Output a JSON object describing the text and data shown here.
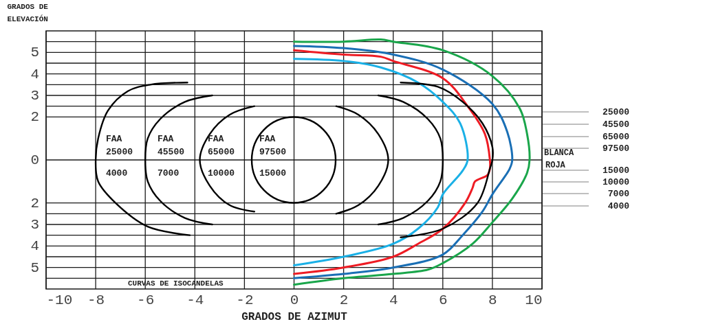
{
  "chart_data": {
    "type": "line",
    "xlabel": "GRADOS DE AZIMUT",
    "ylabel": "GRADOS DE ELEVACIÓN",
    "xlim": [
      -10,
      10
    ],
    "xticks": [
      -10,
      -8,
      -6,
      -4,
      -2,
      0,
      2,
      4,
      6,
      8,
      10
    ],
    "ylim": [
      -6,
      6
    ],
    "yticks": [
      {
        "value": -5.5,
        "label": null
      },
      {
        "value": -5,
        "label": "5"
      },
      {
        "value": -4.5,
        "label": null
      },
      {
        "value": -4,
        "label": "4"
      },
      {
        "value": -3.5,
        "label": null
      },
      {
        "value": -3,
        "label": "3"
      },
      {
        "value": -2.5,
        "label": null
      },
      {
        "value": -2,
        "label": "2"
      },
      0,
      2,
      {
        "value": 2.5,
        "label": null
      },
      3,
      {
        "value": 3.5,
        "label": null
      },
      4,
      {
        "value": 4.5,
        "label": null
      },
      5,
      {
        "value": 5.5,
        "label": null
      }
    ],
    "grid": true,
    "series": [
      {
        "color": "#1aa64b",
        "x": [
          0,
          2,
          3.5,
          4,
          6,
          8,
          9.1,
          9.4,
          9.5,
          9.4,
          8.8,
          8,
          7.2,
          6,
          5.4,
          4,
          2,
          0
        ],
        "values": [
          5.5,
          5.5,
          5.6,
          5.5,
          5.1,
          3.9,
          2.4,
          1.2,
          0,
          -0.6,
          -1.8,
          -2.9,
          -3.9,
          -4.8,
          -5.1,
          -5.3,
          -5.5,
          -5.8
        ]
      },
      {
        "color": "#1a6fb5",
        "x": [
          0,
          2,
          4,
          6,
          8,
          8.6,
          8.8,
          8.7,
          8,
          7.6,
          6.8,
          6,
          4,
          2,
          0
        ],
        "values": [
          5.3,
          5.2,
          4.9,
          4.2,
          2.6,
          1.3,
          0,
          -0.4,
          -1.6,
          -2.4,
          -3.5,
          -4.4,
          -5,
          -5.3,
          -5.5
        ]
      },
      {
        "color": "#ee1c24",
        "x": [
          0,
          2,
          3.5,
          4,
          6,
          7,
          7.7,
          7.9,
          7.9,
          7.8,
          7.3,
          7.2,
          6.9,
          6,
          5,
          4,
          2,
          0
        ],
        "values": [
          5.1,
          4.9,
          4.8,
          4.6,
          3.8,
          2.5,
          1.2,
          0,
          -0.4,
          -0.7,
          -1,
          -1.3,
          -2,
          -3.2,
          -3.9,
          -4.5,
          -5,
          -5.3
        ]
      },
      {
        "color": "#1ab0e6",
        "x": [
          0,
          2,
          3.5,
          5,
          6,
          6.7,
          7,
          6.8,
          6,
          5.8,
          5,
          4,
          2,
          0
        ],
        "values": [
          4.7,
          4.6,
          4.3,
          3.6,
          2.7,
          1.7,
          0,
          -0.5,
          -1.6,
          -2.2,
          -3.2,
          -3.9,
          -4.5,
          -4.9
        ]
      },
      {
        "color": "#000000",
        "x": [
          -4.3,
          -5.8,
          -6.7,
          -7.5,
          -7.9,
          -8,
          -7.9,
          -7.2,
          -5.9,
          -4.2
        ],
        "values": [
          3.6,
          3.5,
          3.2,
          2.3,
          1,
          0,
          -1,
          -2,
          -3.1,
          -3.5
        ]
      },
      {
        "color": "#000000",
        "x": [
          4.3,
          5.8,
          6.8,
          7.6,
          8,
          8,
          7.9,
          7.4,
          6,
          4.3
        ],
        "values": [
          3.6,
          3.4,
          2.7,
          1.7,
          0.6,
          0,
          -0.4,
          -2,
          -3.2,
          -3.6
        ]
      },
      {
        "color": "#000000",
        "x": [
          -3.3,
          -4.4,
          -5.4,
          -5.9,
          -6,
          -5.9,
          -5.4,
          -4.4,
          -3.3
        ],
        "values": [
          3,
          2.7,
          1.9,
          1,
          0,
          -1,
          -1.9,
          -2.7,
          -3
        ]
      },
      {
        "color": "#000000",
        "x": [
          3.4,
          4.4,
          5.4,
          5.9,
          6,
          5.9,
          5.4,
          4.4,
          3.4
        ],
        "values": [
          3,
          2.7,
          1.9,
          1,
          0,
          -1,
          -1.9,
          -2.7,
          -3
        ]
      },
      {
        "color": "#000000",
        "x": [
          -1.6,
          -2.6,
          -3.4,
          -3.8,
          -3.4,
          -2.6,
          -1.6
        ],
        "values": [
          2.5,
          2.1,
          1.2,
          0,
          -1.2,
          -2.1,
          -2.4
        ]
      },
      {
        "color": "#000000",
        "x": [
          1.7,
          2.6,
          3.4,
          3.8,
          3.4,
          2.6,
          1.7
        ],
        "values": [
          2.5,
          2.1,
          1.2,
          0,
          -1.2,
          -2.1,
          -2.5
        ]
      }
    ],
    "annotations": [
      "CURVAS DE ISOCANDELAS",
      "BLANCA",
      "ROJA",
      "FAA",
      "25000",
      "4000",
      "FAA",
      "45500",
      "7000",
      "FAA",
      "65000",
      "10000",
      "FAA",
      "97500",
      "15000",
      "25000",
      "45500",
      "65000",
      "97500",
      "15000",
      "10000",
      "7000",
      "4000"
    ]
  }
}
